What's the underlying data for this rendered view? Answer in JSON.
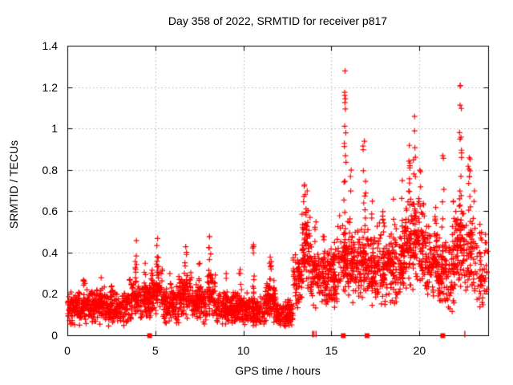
{
  "colors": {
    "marker": "#ff0000",
    "grid": "#b4b4b4",
    "axis": "#000000",
    "background": "#ffffff",
    "text": "#000000"
  },
  "chart_data": {
    "type": "scatter",
    "title": "Day 358 of 2022, SRMTID for receiver p817",
    "xlabel": "GPS time / hours",
    "ylabel": "SRMTID / TECUs",
    "xlim": [
      0,
      23.9
    ],
    "ylim": [
      0,
      1.4
    ],
    "grid": true,
    "legend": "none",
    "marker": "plus-cross",
    "xticks": {
      "values": [
        0,
        5,
        10,
        15,
        20
      ],
      "labels": [
        "0",
        "5",
        "10",
        "15",
        "20"
      ]
    },
    "yticks": {
      "values": [
        0,
        0.2,
        0.4,
        0.6,
        0.8,
        1.0,
        1.2,
        1.4
      ],
      "labels": [
        "0",
        "0.2",
        "0.4",
        "0.6",
        "0.8",
        "1",
        "1.2",
        "1.4"
      ]
    },
    "seed": 42,
    "band_format": [
      "t_start_hours",
      "t_end_hours",
      "v_min_TECU",
      "v_max_TECU",
      "point_count"
    ],
    "bands": [
      [
        0.0,
        0.9,
        0.04,
        0.22,
        110
      ],
      [
        0.9,
        2.1,
        0.05,
        0.24,
        150
      ],
      [
        2.1,
        3.5,
        0.04,
        0.22,
        170
      ],
      [
        3.5,
        4.7,
        0.06,
        0.3,
        145
      ],
      [
        4.7,
        5.4,
        0.08,
        0.35,
        85
      ],
      [
        5.4,
        6.3,
        0.05,
        0.25,
        110
      ],
      [
        6.3,
        7.1,
        0.07,
        0.32,
        95
      ],
      [
        7.1,
        7.9,
        0.05,
        0.25,
        95
      ],
      [
        7.9,
        8.4,
        0.08,
        0.33,
        60
      ],
      [
        8.4,
        10.3,
        0.04,
        0.22,
        230
      ],
      [
        10.3,
        11.2,
        0.04,
        0.2,
        110
      ],
      [
        11.2,
        11.8,
        0.05,
        0.28,
        75
      ],
      [
        11.8,
        12.8,
        0.04,
        0.18,
        120
      ],
      [
        12.8,
        13.3,
        0.1,
        0.4,
        60
      ],
      [
        13.3,
        13.8,
        0.2,
        0.6,
        60
      ],
      [
        13.8,
        15.3,
        0.12,
        0.45,
        180
      ],
      [
        15.3,
        16.1,
        0.18,
        0.6,
        95
      ],
      [
        16.1,
        17.1,
        0.15,
        0.55,
        120
      ],
      [
        17.1,
        19.1,
        0.12,
        0.55,
        240
      ],
      [
        19.1,
        20.3,
        0.2,
        0.7,
        145
      ],
      [
        20.3,
        21.0,
        0.18,
        0.55,
        85
      ],
      [
        21.0,
        22.0,
        0.08,
        0.5,
        120
      ],
      [
        22.0,
        23.0,
        0.2,
        0.65,
        120
      ],
      [
        23.0,
        23.85,
        0.12,
        0.55,
        55
      ]
    ],
    "column_format": [
      "t_center_hours",
      "v_min_TECU",
      "v_peak_TECU",
      "point_count"
    ],
    "columns": [
      [
        0.9,
        0.15,
        0.27,
        8
      ],
      [
        1.9,
        0.15,
        0.28,
        8
      ],
      [
        2.5,
        0.14,
        0.24,
        6
      ],
      [
        3.9,
        0.15,
        0.46,
        14
      ],
      [
        4.4,
        0.12,
        0.35,
        8
      ],
      [
        5.1,
        0.15,
        0.47,
        14
      ],
      [
        5.8,
        0.12,
        0.3,
        6
      ],
      [
        6.7,
        0.15,
        0.43,
        12
      ],
      [
        7.5,
        0.12,
        0.35,
        8
      ],
      [
        8.05,
        0.15,
        0.48,
        12
      ],
      [
        9.0,
        0.1,
        0.3,
        6
      ],
      [
        9.8,
        0.12,
        0.32,
        8
      ],
      [
        10.55,
        0.15,
        0.44,
        10
      ],
      [
        11.5,
        0.12,
        0.38,
        10
      ],
      [
        13.45,
        0.35,
        0.73,
        14
      ],
      [
        13.6,
        0.3,
        0.7,
        10
      ],
      [
        14.1,
        0.25,
        0.55,
        8
      ],
      [
        14.5,
        0.25,
        0.48,
        8
      ],
      [
        15.15,
        0.2,
        0.45,
        6
      ],
      [
        15.75,
        0.3,
        1.28,
        24
      ],
      [
        16.1,
        0.3,
        0.8,
        8
      ],
      [
        16.85,
        0.3,
        0.94,
        16
      ],
      [
        17.3,
        0.25,
        0.65,
        8
      ],
      [
        17.9,
        0.25,
        0.6,
        8
      ],
      [
        18.5,
        0.25,
        0.66,
        8
      ],
      [
        19.0,
        0.3,
        0.75,
        8
      ],
      [
        19.4,
        0.4,
        0.92,
        18
      ],
      [
        19.7,
        0.4,
        1.06,
        16
      ],
      [
        20.0,
        0.3,
        0.8,
        8
      ],
      [
        20.9,
        0.3,
        0.62,
        8
      ],
      [
        21.3,
        0.25,
        0.87,
        10
      ],
      [
        21.9,
        0.25,
        0.65,
        8
      ],
      [
        22.3,
        0.35,
        1.21,
        18
      ],
      [
        22.8,
        0.3,
        0.86,
        12
      ],
      [
        23.1,
        0.2,
        0.7,
        5
      ],
      [
        23.5,
        0.2,
        0.5,
        6
      ]
    ],
    "zero_markers": {
      "squares_hours": [
        4.65,
        15.65,
        17.0,
        21.3
      ],
      "bars_hours": [
        13.9,
        13.98,
        14.1,
        22.55
      ]
    }
  }
}
